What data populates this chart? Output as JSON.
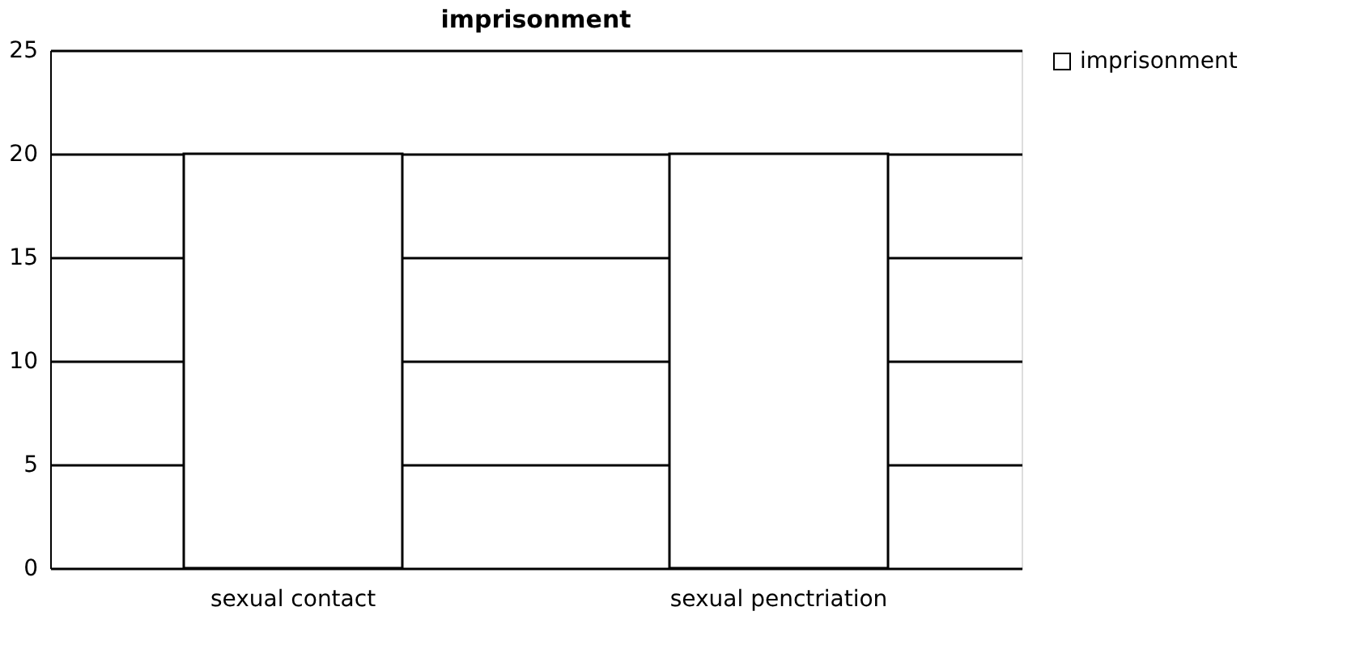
{
  "chart_data": {
    "type": "bar",
    "title": "imprisonment",
    "categories": [
      "sexual contact",
      "sexual penctriation"
    ],
    "series": [
      {
        "name": "imprisonment",
        "color": "#ffffff",
        "values": [
          20,
          20
        ]
      }
    ],
    "ylim": [
      0,
      25
    ],
    "yticks": [
      0,
      5,
      10,
      15,
      20,
      25
    ],
    "grid": "y",
    "legend": "right"
  }
}
